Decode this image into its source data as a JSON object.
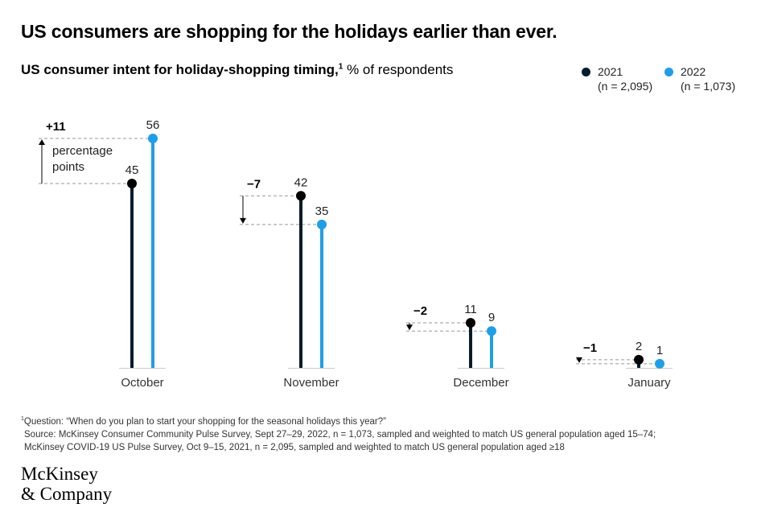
{
  "title": "US consumers are shopping for the holidays earlier than ever.",
  "subtitle": {
    "bold": "US consumer intent for holiday-shopping timing,",
    "footnote_mark": "1",
    "rest": " % of respondents"
  },
  "legend": [
    {
      "label": "2021",
      "sub": "(n = 2,095)",
      "color": "#051c2c"
    },
    {
      "label": "2022",
      "sub": "(n = 1,073)",
      "color": "#1f9ee8"
    }
  ],
  "chart_data": {
    "type": "lollipop",
    "categories": [
      "October",
      "November",
      "December",
      "January"
    ],
    "series": [
      {
        "name": "2021",
        "values": [
          45,
          42,
          11,
          2
        ]
      },
      {
        "name": "2022",
        "values": [
          56,
          35,
          9,
          1
        ]
      }
    ],
    "changes": [
      "+11",
      "−7",
      "−2",
      "−1"
    ],
    "annotation": [
      "percentage",
      "points"
    ],
    "ylim": [
      0,
      56
    ]
  },
  "footnote": {
    "mark": "1",
    "line1": "Question: “When do you plan to start your shopping for the seasonal holidays this year?”",
    "line2": "Source: McKinsey Consumer Community Pulse Survey, Sept 27–29, 2022, n = 1,073, sampled and weighted to match US general population aged 15–74;",
    "line3": "McKinsey COVID-19 US Pulse Survey, Oct 9–15, 2021, n = 2,095, sampled and weighted to match US general population aged ≥18"
  },
  "logo": {
    "line1": "McKinsey",
    "line2": "& Company"
  }
}
